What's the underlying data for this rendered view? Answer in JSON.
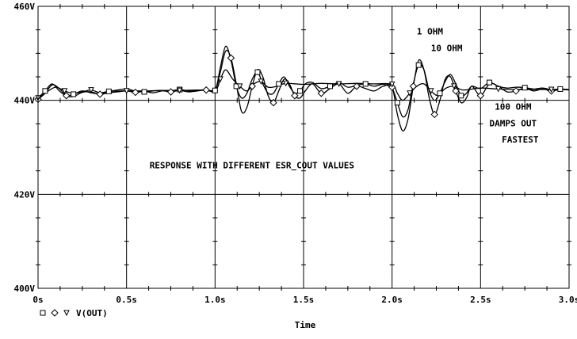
{
  "chart_data": {
    "type": "line",
    "title": "",
    "xlabel": "Time",
    "ylabel": "",
    "xlim": [
      0,
      3.0
    ],
    "ylim": [
      400,
      460
    ],
    "x_ticks": [
      {
        "v": 0.0,
        "label": "0s"
      },
      {
        "v": 0.5,
        "label": "0.5s"
      },
      {
        "v": 1.0,
        "label": "1.0s"
      },
      {
        "v": 1.5,
        "label": "1.5s"
      },
      {
        "v": 2.0,
        "label": "2.0s"
      },
      {
        "v": 2.5,
        "label": "2.5s"
      },
      {
        "v": 3.0,
        "label": "3.0s"
      }
    ],
    "y_ticks": [
      {
        "v": 400,
        "label": "400V"
      },
      {
        "v": 420,
        "label": "420V"
      },
      {
        "v": 440,
        "label": "440V"
      },
      {
        "v": 460,
        "label": "460V"
      }
    ],
    "grid": true,
    "legend": {
      "position": "bottom-left",
      "markers": [
        "□",
        "◇",
        "▽"
      ],
      "text": "V(OUT)"
    },
    "series": [
      {
        "name": "1 OHM",
        "marker": "diamond",
        "x": [
          0.0,
          0.04,
          0.08,
          0.12,
          0.16,
          0.2,
          0.25,
          0.3,
          0.35,
          0.4,
          0.45,
          0.5,
          0.55,
          0.6,
          0.65,
          0.7,
          0.75,
          0.8,
          0.85,
          0.9,
          0.95,
          1.0,
          1.03,
          1.06,
          1.09,
          1.12,
          1.15,
          1.18,
          1.21,
          1.24,
          1.27,
          1.3,
          1.33,
          1.36,
          1.39,
          1.42,
          1.45,
          1.48,
          1.51,
          1.55,
          1.6,
          1.65,
          1.7,
          1.75,
          1.8,
          1.85,
          1.9,
          1.95,
          2.0,
          2.03,
          2.06,
          2.09,
          2.12,
          2.15,
          2.18,
          2.21,
          2.24,
          2.27,
          2.3,
          2.33,
          2.36,
          2.39,
          2.42,
          2.45,
          2.5,
          2.55,
          2.6,
          2.65,
          2.7,
          2.75,
          2.8,
          2.85,
          2.9,
          2.95,
          3.0
        ],
        "y": [
          440.2,
          441.5,
          443.3,
          442.5,
          441.0,
          440.8,
          441.7,
          441.8,
          441.3,
          441.6,
          441.8,
          442.0,
          441.7,
          441.9,
          441.6,
          442.0,
          441.8,
          442.1,
          441.8,
          442.0,
          442.2,
          442.0,
          446.0,
          450.5,
          449.0,
          443.5,
          437.6,
          438.5,
          443.0,
          446.5,
          445.0,
          441.0,
          439.5,
          442.0,
          444.5,
          443.5,
          441.0,
          440.5,
          442.0,
          443.5,
          441.5,
          442.5,
          443.5,
          441.5,
          443.0,
          442.5,
          442.0,
          443.0,
          442.8,
          437.0,
          433.5,
          436.0,
          443.0,
          448.5,
          446.5,
          440.5,
          437.0,
          440.0,
          444.5,
          445.0,
          442.0,
          439.5,
          440.5,
          443.0,
          441.0,
          443.5,
          443.0,
          441.8,
          442.0,
          442.6,
          442.0,
          442.4,
          442.0,
          442.3,
          442.2
        ]
      },
      {
        "name": "10 OHM",
        "marker": "square",
        "x": [
          0.0,
          0.04,
          0.08,
          0.12,
          0.16,
          0.2,
          0.25,
          0.3,
          0.35,
          0.4,
          0.45,
          0.5,
          0.55,
          0.6,
          0.65,
          0.7,
          0.75,
          0.8,
          0.85,
          0.9,
          0.95,
          1.0,
          1.03,
          1.06,
          1.09,
          1.12,
          1.15,
          1.18,
          1.21,
          1.24,
          1.27,
          1.3,
          1.33,
          1.36,
          1.39,
          1.42,
          1.45,
          1.48,
          1.51,
          1.55,
          1.6,
          1.65,
          1.7,
          1.75,
          1.8,
          1.85,
          1.9,
          1.95,
          2.0,
          2.03,
          2.06,
          2.09,
          2.12,
          2.15,
          2.18,
          2.21,
          2.24,
          2.27,
          2.3,
          2.33,
          2.36,
          2.39,
          2.42,
          2.45,
          2.5,
          2.55,
          2.6,
          2.65,
          2.7,
          2.75,
          2.8,
          2.85,
          2.9,
          2.95,
          3.0
        ],
        "y": [
          440.5,
          442.0,
          443.5,
          442.0,
          441.0,
          441.3,
          442.0,
          441.6,
          441.4,
          441.9,
          442.2,
          442.4,
          442.0,
          441.8,
          442.0,
          442.1,
          442.0,
          442.3,
          442.0,
          442.1,
          442.3,
          442.1,
          447.0,
          451.5,
          448.5,
          443.0,
          440.5,
          441.5,
          444.5,
          446.0,
          443.5,
          441.5,
          441.5,
          443.5,
          445.0,
          443.0,
          441.5,
          442.0,
          443.5,
          443.8,
          442.5,
          443.0,
          443.8,
          442.8,
          443.2,
          443.5,
          443.0,
          443.4,
          442.5,
          439.5,
          436.5,
          438.0,
          443.5,
          447.5,
          446.5,
          442.0,
          440.0,
          441.5,
          444.0,
          445.5,
          443.5,
          441.0,
          441.5,
          443.0,
          442.5,
          443.8,
          443.0,
          442.6,
          442.8,
          442.7,
          442.4,
          442.6,
          442.3,
          442.4,
          442.3
        ]
      },
      {
        "name": "100 OHM",
        "marker": "triangle-down",
        "x": [
          0.0,
          0.05,
          0.1,
          0.15,
          0.2,
          0.25,
          0.3,
          0.35,
          0.4,
          0.5,
          0.6,
          0.7,
          0.8,
          0.9,
          1.0,
          1.03,
          1.06,
          1.1,
          1.14,
          1.18,
          1.22,
          1.26,
          1.3,
          1.35,
          1.4,
          1.5,
          1.6,
          1.7,
          1.8,
          1.9,
          2.0,
          2.03,
          2.06,
          2.1,
          2.14,
          2.18,
          2.22,
          2.26,
          2.3,
          2.35,
          2.4,
          2.5,
          2.6,
          2.7,
          2.8,
          2.9,
          3.0
        ],
        "y": [
          440.5,
          441.8,
          442.8,
          442.0,
          441.5,
          441.8,
          442.2,
          441.6,
          441.9,
          442.0,
          442.0,
          442.1,
          442.1,
          442.2,
          442.2,
          444.5,
          446.5,
          444.5,
          443.0,
          442.0,
          443.5,
          444.0,
          442.8,
          443.0,
          443.6,
          443.4,
          443.6,
          443.5,
          443.6,
          443.5,
          443.4,
          441.5,
          440.0,
          441.5,
          443.0,
          443.5,
          442.0,
          441.0,
          442.5,
          443.0,
          442.2,
          442.6,
          442.4,
          442.3,
          442.3,
          442.3,
          442.3
        ]
      }
    ],
    "annotations": [
      {
        "text": "1 OHM",
        "x": 2.14,
        "y": 454.0
      },
      {
        "text": "10 OHM",
        "x": 2.22,
        "y": 450.5
      },
      {
        "text": "100 OHM",
        "x": 2.58,
        "y": 438.0
      },
      {
        "text": "DAMPS  OUT",
        "x": 2.55,
        "y": 434.5
      },
      {
        "text": "FASTEST",
        "x": 2.62,
        "y": 431.0
      },
      {
        "text": "RESPONSE WITH DIFFERENT ESR_COUT VALUES",
        "x": 0.63,
        "y": 425.5
      }
    ]
  }
}
